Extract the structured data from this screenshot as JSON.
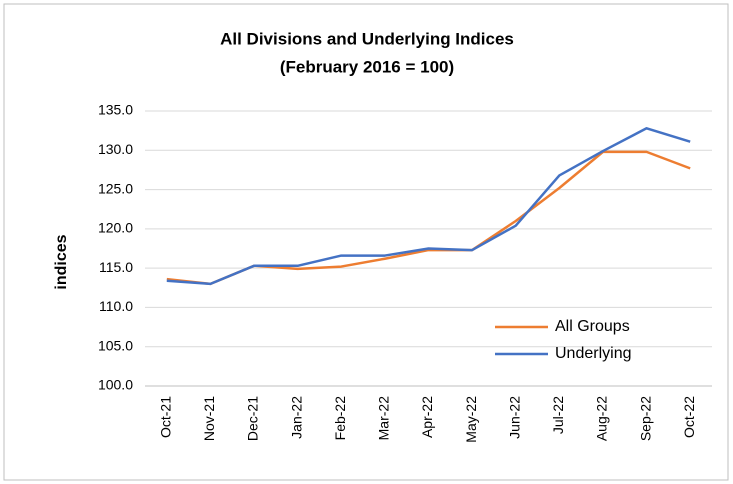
{
  "chart_data": {
    "type": "line",
    "title": "All Divisions and Underlying Indices",
    "subtitle": "(February 2016 = 100)",
    "y_label": "indices",
    "categories": [
      "Oct-21",
      "Nov-21",
      "Dec-21",
      "Jan-22",
      "Feb-22",
      "Mar-22",
      "Apr-22",
      "May-22",
      "Jun-22",
      "Jul-22",
      "Aug-22",
      "Sep-22",
      "Oct-22"
    ],
    "series": [
      {
        "name": "All Groups",
        "color": "#ed7d31",
        "values": [
          113.6,
          113.0,
          115.3,
          114.9,
          115.2,
          116.2,
          117.3,
          117.3,
          121.0,
          125.2,
          129.8,
          129.8,
          127.7
        ]
      },
      {
        "name": "Underlying",
        "color": "#4472c4",
        "values": [
          113.4,
          113.0,
          115.3,
          115.3,
          116.6,
          116.6,
          117.5,
          117.3,
          120.4,
          126.8,
          129.9,
          132.8,
          131.1
        ]
      }
    ],
    "ylim": [
      100,
      135
    ],
    "yticks": [
      {
        "value": 100,
        "label": "100.0"
      },
      {
        "value": 105,
        "label": "105.0"
      },
      {
        "value": 110,
        "label": "110.0"
      },
      {
        "value": 115,
        "label": "115.0"
      },
      {
        "value": 120,
        "label": "120.0"
      },
      {
        "value": 125,
        "label": "125.0"
      },
      {
        "value": 130,
        "label": "130.0"
      },
      {
        "value": 135,
        "label": "135.0"
      }
    ],
    "grid": true,
    "legend": "lower right"
  }
}
